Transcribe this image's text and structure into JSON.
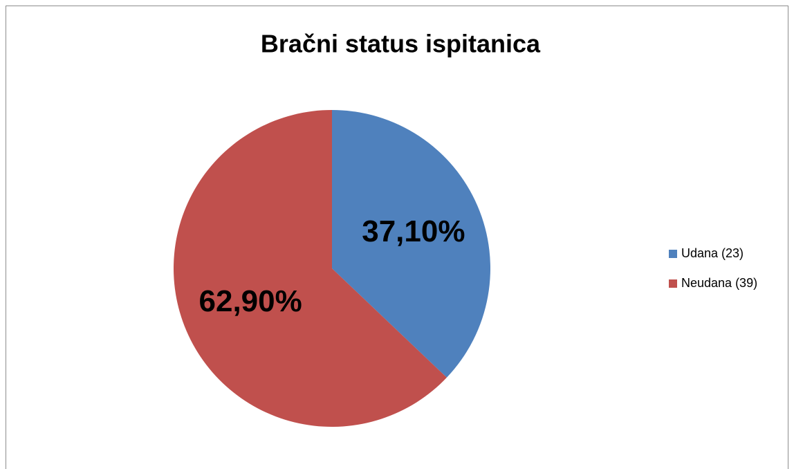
{
  "chart_data": {
    "type": "pie",
    "title": "Bračni status ispitanica",
    "categories": [
      "Udana (23)",
      "Neudana (39)"
    ],
    "values": [
      37.1,
      62.9
    ],
    "value_labels": [
      "37,10%",
      "62,90%"
    ],
    "colors": [
      "#4f81bd",
      "#c0504d"
    ],
    "legend": "right"
  }
}
